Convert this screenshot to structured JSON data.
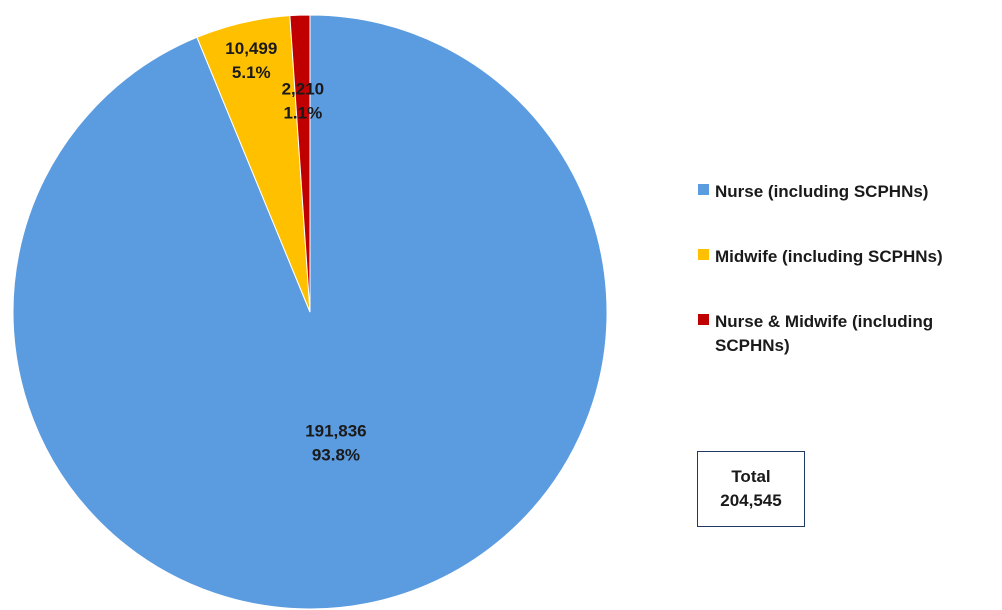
{
  "chart_data": {
    "type": "pie",
    "categories": [
      "Nurse (including SCPHNs)",
      "Midwife (including SCPHNs)",
      "Nurse & Midwife (including SCPHNs)"
    ],
    "values": [
      191836,
      10499,
      2210
    ],
    "value_labels": [
      "191,836",
      "10,499",
      "2,210"
    ],
    "percent_labels": [
      "93.8%",
      "5.1%",
      "1.1%"
    ],
    "colors": [
      "#5b9be0",
      "#ffc000",
      "#c00000"
    ],
    "legend": "right",
    "total_label": "Total",
    "total": "204,545"
  }
}
